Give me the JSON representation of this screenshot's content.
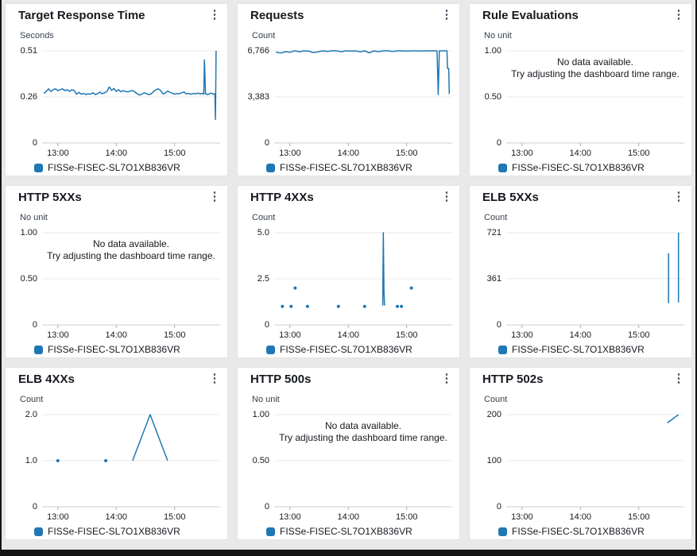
{
  "legend_label": "FISSe-FISEC-SL7O1XB836VR",
  "no_data_message": [
    "No data available.",
    "Try adjusting the dashboard time range."
  ],
  "kebab_icon": "⋮",
  "colors": {
    "series": "#1f77b4",
    "grid": "#e8e8e8",
    "baseline": "#c9cdd2",
    "hour_tick": "#aab0b6"
  },
  "time_axis": {
    "domain": [
      12.73,
      15.78
    ],
    "ticks": [
      {
        "t": 13,
        "label": "13:00"
      },
      {
        "t": 14,
        "label": "14:00"
      },
      {
        "t": 15,
        "label": "15:00"
      }
    ]
  },
  "chart_data": [
    {
      "title": "Target Response Time",
      "unit": "Seconds",
      "type": "line",
      "no_data": false,
      "y_max": 0.51,
      "y_ticks": [
        {
          "v": 0.51,
          "label": "0.51"
        },
        {
          "v": 0.255,
          "label": "0.26"
        },
        {
          "v": 0,
          "label": "0"
        }
      ],
      "series": [
        {
          "name": "FISSe-FISEC-SL7O1XB836VR",
          "draw": "line",
          "points": [
            [
              12.76,
              0.275
            ],
            [
              12.8,
              0.285
            ],
            [
              12.84,
              0.3
            ],
            [
              12.88,
              0.285
            ],
            [
              12.92,
              0.295
            ],
            [
              12.96,
              0.3
            ],
            [
              13,
              0.29
            ],
            [
              13.04,
              0.295
            ],
            [
              13.08,
              0.3
            ],
            [
              13.12,
              0.29
            ],
            [
              13.16,
              0.295
            ],
            [
              13.2,
              0.285
            ],
            [
              13.24,
              0.295
            ],
            [
              13.28,
              0.29
            ],
            [
              13.32,
              0.27
            ],
            [
              13.36,
              0.28
            ],
            [
              13.4,
              0.27
            ],
            [
              13.44,
              0.275
            ],
            [
              13.48,
              0.268
            ],
            [
              13.52,
              0.272
            ],
            [
              13.56,
              0.27
            ],
            [
              13.6,
              0.278
            ],
            [
              13.64,
              0.268
            ],
            [
              13.68,
              0.272
            ],
            [
              13.72,
              0.282
            ],
            [
              13.76,
              0.272
            ],
            [
              13.8,
              0.278
            ],
            [
              13.84,
              0.285
            ],
            [
              13.88,
              0.31
            ],
            [
              13.92,
              0.29
            ],
            [
              13.96,
              0.302
            ],
            [
              14,
              0.285
            ],
            [
              14.04,
              0.295
            ],
            [
              14.08,
              0.283
            ],
            [
              14.12,
              0.29
            ],
            [
              14.16,
              0.285
            ],
            [
              14.2,
              0.283
            ],
            [
              14.24,
              0.287
            ],
            [
              14.28,
              0.29
            ],
            [
              14.32,
              0.282
            ],
            [
              14.36,
              0.272
            ],
            [
              14.4,
              0.265
            ],
            [
              14.44,
              0.27
            ],
            [
              14.48,
              0.278
            ],
            [
              14.52,
              0.272
            ],
            [
              14.56,
              0.268
            ],
            [
              14.6,
              0.272
            ],
            [
              14.64,
              0.285
            ],
            [
              14.68,
              0.295
            ],
            [
              14.72,
              0.3
            ],
            [
              14.76,
              0.29
            ],
            [
              14.8,
              0.272
            ],
            [
              14.84,
              0.276
            ],
            [
              14.88,
              0.288
            ],
            [
              14.92,
              0.28
            ],
            [
              14.96,
              0.276
            ],
            [
              15,
              0.27
            ],
            [
              15.04,
              0.274
            ],
            [
              15.08,
              0.272
            ],
            [
              15.12,
              0.278
            ],
            [
              15.16,
              0.282
            ],
            [
              15.2,
              0.272
            ],
            [
              15.24,
              0.274
            ],
            [
              15.28,
              0.27
            ],
            [
              15.32,
              0.274
            ],
            [
              15.36,
              0.272
            ],
            [
              15.4,
              0.276
            ],
            [
              15.44,
              0.272
            ],
            [
              15.48,
              0.275
            ],
            [
              15.5,
              0.27
            ],
            [
              15.51,
              0.46
            ],
            [
              15.53,
              0.272
            ],
            [
              15.56,
              0.268
            ],
            [
              15.6,
              0.272
            ],
            [
              15.63,
              0.276
            ],
            [
              15.66,
              0.27
            ],
            [
              15.69,
              0.272
            ],
            [
              15.7,
              0.13
            ],
            [
              15.71,
              0.51
            ]
          ]
        }
      ]
    },
    {
      "title": "Requests",
      "unit": "Count",
      "type": "line",
      "no_data": false,
      "y_max": 6766,
      "y_ticks": [
        {
          "v": 6766,
          "label": "6,766"
        },
        {
          "v": 3383,
          "label": "3,383"
        },
        {
          "v": 0,
          "label": "0"
        }
      ],
      "series": [
        {
          "name": "FISSe-FISEC-SL7O1XB836VR",
          "draw": "line",
          "points": [
            [
              12.76,
              6680
            ],
            [
              12.84,
              6600
            ],
            [
              12.92,
              6700
            ],
            [
              13,
              6660
            ],
            [
              13.08,
              6766
            ],
            [
              13.16,
              6700
            ],
            [
              13.24,
              6766
            ],
            [
              13.32,
              6740
            ],
            [
              13.4,
              6640
            ],
            [
              13.48,
              6690
            ],
            [
              13.56,
              6766
            ],
            [
              13.64,
              6720
            ],
            [
              13.72,
              6766
            ],
            [
              13.8,
              6766
            ],
            [
              13.88,
              6700
            ],
            [
              13.96,
              6766
            ],
            [
              14.04,
              6740
            ],
            [
              14.12,
              6766
            ],
            [
              14.2,
              6690
            ],
            [
              14.28,
              6766
            ],
            [
              14.36,
              6620
            ],
            [
              14.44,
              6766
            ],
            [
              14.52,
              6710
            ],
            [
              14.6,
              6766
            ],
            [
              14.68,
              6766
            ],
            [
              14.76,
              6720
            ],
            [
              14.84,
              6766
            ],
            [
              14.92,
              6766
            ],
            [
              15,
              6740
            ],
            [
              15.08,
              6766
            ],
            [
              15.16,
              6766
            ],
            [
              15.24,
              6755
            ],
            [
              15.32,
              6766
            ],
            [
              15.4,
              6766
            ],
            [
              15.48,
              6766
            ],
            [
              15.52,
              6766
            ],
            [
              15.54,
              3550
            ],
            [
              15.56,
              6766
            ],
            [
              15.6,
              6766
            ],
            [
              15.65,
              6766
            ],
            [
              15.69,
              6766
            ],
            [
              15.7,
              5470
            ],
            [
              15.72,
              5470
            ],
            [
              15.73,
              3600
            ]
          ]
        }
      ]
    },
    {
      "title": "Rule Evaluations",
      "unit": "No unit",
      "type": "line",
      "no_data": true,
      "y_max": 1,
      "y_ticks": [
        {
          "v": 1,
          "label": "1.00"
        },
        {
          "v": 0.5,
          "label": "0.50"
        },
        {
          "v": 0,
          "label": "0"
        }
      ],
      "series": []
    },
    {
      "title": "HTTP 5XXs",
      "unit": "No unit",
      "type": "line",
      "no_data": true,
      "y_max": 1,
      "y_ticks": [
        {
          "v": 1,
          "label": "1.00"
        },
        {
          "v": 0.5,
          "label": "0.50"
        },
        {
          "v": 0,
          "label": "0"
        }
      ],
      "series": []
    },
    {
      "title": "HTTP 4XXs",
      "unit": "Count",
      "type": "scatter",
      "no_data": false,
      "y_max": 5,
      "y_ticks": [
        {
          "v": 5,
          "label": "5.0"
        },
        {
          "v": 2.5,
          "label": "2.5"
        },
        {
          "v": 0,
          "label": "0"
        }
      ],
      "series": [
        {
          "name": "FISSe-FISEC-SL7O1XB836VR",
          "draw": "dots",
          "points": [
            [
              12.87,
              1
            ],
            [
              13.02,
              1
            ],
            [
              13.09,
              2
            ],
            [
              13.3,
              1
            ],
            [
              13.83,
              1
            ],
            [
              14.28,
              1
            ],
            [
              14.84,
              1
            ],
            [
              14.91,
              1
            ],
            [
              15.08,
              2
            ]
          ]
        },
        {
          "name": "FISSe-FISEC-SL7O1XB836VR",
          "draw": "line",
          "points": [
            [
              14.59,
              1.05
            ],
            [
              14.6,
              5
            ],
            [
              14.61,
              1.9
            ],
            [
              14.62,
              1.05
            ]
          ]
        }
      ]
    },
    {
      "title": "ELB 5XXs",
      "unit": "Count",
      "type": "line",
      "no_data": false,
      "y_max": 721,
      "y_ticks": [
        {
          "v": 721,
          "label": "721"
        },
        {
          "v": 361,
          "label": "361"
        },
        {
          "v": 0,
          "label": "0"
        }
      ],
      "series": [
        {
          "name": "FISSe-FISEC-SL7O1XB836VR",
          "draw": "line",
          "points": [
            [
              15.51,
              170
            ],
            [
              15.51,
              560
            ]
          ]
        },
        {
          "name": "FISSe-FISEC-SL7O1XB836VR",
          "draw": "line",
          "points": [
            [
              15.68,
              175
            ],
            [
              15.68,
              721
            ]
          ]
        }
      ]
    },
    {
      "title": "ELB 4XXs",
      "unit": "Count",
      "type": "line",
      "no_data": false,
      "y_max": 2,
      "y_ticks": [
        {
          "v": 2,
          "label": "2.0"
        },
        {
          "v": 1,
          "label": "1.0"
        },
        {
          "v": 0,
          "label": "0"
        }
      ],
      "series": [
        {
          "name": "FISSe-FISEC-SL7O1XB836VR",
          "draw": "dots",
          "points": [
            [
              13,
              1
            ],
            [
              13.82,
              1
            ]
          ]
        },
        {
          "name": "FISSe-FISEC-SL7O1XB836VR",
          "draw": "line",
          "points": [
            [
              14.28,
              1
            ],
            [
              14.58,
              2
            ],
            [
              14.88,
              1
            ]
          ]
        }
      ]
    },
    {
      "title": "HTTP 500s",
      "unit": "No unit",
      "type": "line",
      "no_data": true,
      "y_max": 1,
      "y_ticks": [
        {
          "v": 1,
          "label": "1.00"
        },
        {
          "v": 0.5,
          "label": "0.50"
        },
        {
          "v": 0,
          "label": "0"
        }
      ],
      "series": []
    },
    {
      "title": "HTTP 502s",
      "unit": "Count",
      "type": "line",
      "no_data": false,
      "y_max": 200,
      "y_ticks": [
        {
          "v": 200,
          "label": "200"
        },
        {
          "v": 100,
          "label": "100"
        },
        {
          "v": 0,
          "label": "0"
        }
      ],
      "series": [
        {
          "name": "FISSe-FISEC-SL7O1XB836VR",
          "draw": "line",
          "points": [
            [
              15.49,
              182
            ],
            [
              15.68,
              200
            ]
          ]
        }
      ]
    }
  ]
}
